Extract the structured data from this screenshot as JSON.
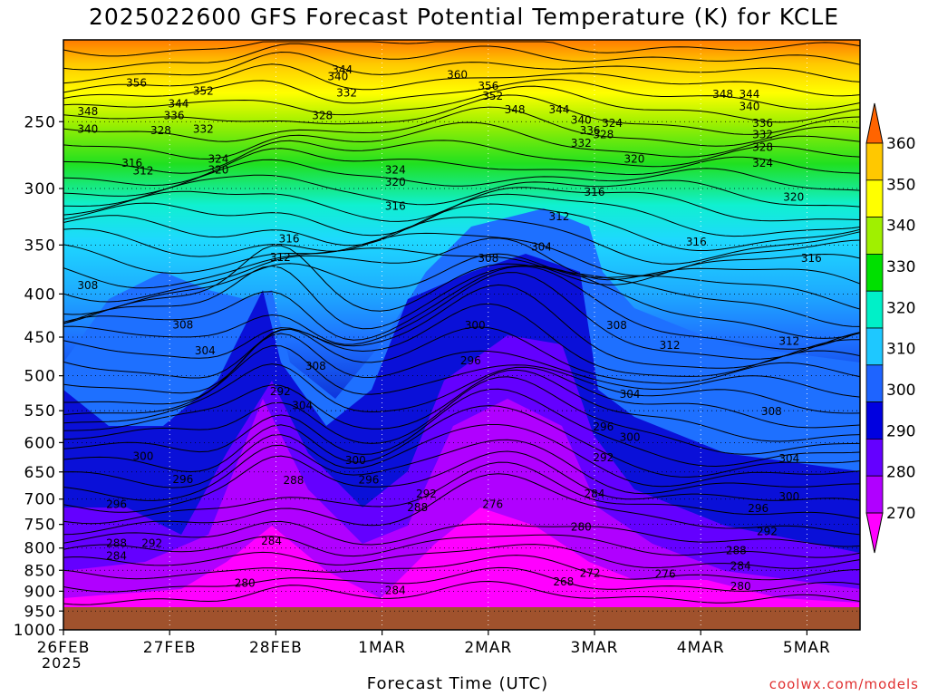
{
  "title": "2025022600 GFS Forecast Potential Temperature (K) for KCLE",
  "xlabel": "Forecast Time (UTC)",
  "credit": "coolwx.com/models",
  "year_label": "2025",
  "chart_data": {
    "type": "contour-time-height",
    "variable": "Potential Temperature (K)",
    "x_ticks": [
      "26FEB",
      "27FEB",
      "28FEB",
      "1MAR",
      "2MAR",
      "3MAR",
      "4MAR",
      "5MAR"
    ],
    "y_ticks": [
      250,
      300,
      350,
      400,
      450,
      500,
      550,
      600,
      650,
      700,
      750,
      800,
      850,
      900,
      950,
      1000
    ],
    "y_scale": "log",
    "y_range": [
      1000,
      200
    ],
    "x_range_hours": [
      0,
      180
    ],
    "colorbar_levels": [
      270,
      280,
      290,
      300,
      310,
      320,
      330,
      340,
      350,
      360
    ],
    "colorbar_colors": [
      "#ff00ff",
      "#b000ff",
      "#6400ff",
      "#0000e0",
      "#1e64ff",
      "#1ec8ff",
      "#00f0c8",
      "#00e000",
      "#a0f000",
      "#ffff00",
      "#ffc800",
      "#ff6400"
    ],
    "contour_labels": [
      {
        "t": 16.5,
        "p": 225,
        "v": 356
      },
      {
        "t": 31.6,
        "p": 230,
        "v": 352
      },
      {
        "t": 5.5,
        "p": 243,
        "v": 348
      },
      {
        "t": 5.5,
        "p": 255,
        "v": 340
      },
      {
        "t": 26,
        "p": 238,
        "v": 344
      },
      {
        "t": 25,
        "p": 246,
        "v": 336
      },
      {
        "t": 31.6,
        "p": 255,
        "v": 332
      },
      {
        "t": 22,
        "p": 256,
        "v": 328
      },
      {
        "t": 15.5,
        "p": 280,
        "v": 316
      },
      {
        "t": 18,
        "p": 286,
        "v": 312
      },
      {
        "t": 35,
        "p": 277,
        "v": 324
      },
      {
        "t": 35,
        "p": 285,
        "v": 320
      },
      {
        "t": 63,
        "p": 217,
        "v": 344
      },
      {
        "t": 62,
        "p": 221,
        "v": 340
      },
      {
        "t": 64,
        "p": 231,
        "v": 332
      },
      {
        "t": 58.5,
        "p": 246,
        "v": 328
      },
      {
        "t": 75,
        "p": 285,
        "v": 324
      },
      {
        "t": 75,
        "p": 295,
        "v": 320
      },
      {
        "t": 75,
        "p": 315,
        "v": 316
      },
      {
        "t": 89,
        "p": 220,
        "v": 360
      },
      {
        "t": 96,
        "p": 227,
        "v": 356
      },
      {
        "t": 97,
        "p": 233,
        "v": 352
      },
      {
        "t": 102,
        "p": 242,
        "v": 348
      },
      {
        "t": 112,
        "p": 242,
        "v": 344
      },
      {
        "t": 117,
        "p": 249,
        "v": 340
      },
      {
        "t": 119,
        "p": 256,
        "v": 336
      },
      {
        "t": 117,
        "p": 265,
        "v": 332
      },
      {
        "t": 124,
        "p": 251,
        "v": 324
      },
      {
        "t": 122,
        "p": 259,
        "v": 328
      },
      {
        "t": 129,
        "p": 277,
        "v": 320
      },
      {
        "t": 120,
        "p": 303,
        "v": 316
      },
      {
        "t": 149,
        "p": 232,
        "v": 348
      },
      {
        "t": 155,
        "p": 232,
        "v": 344
      },
      {
        "t": 155,
        "p": 240,
        "v": 340
      },
      {
        "t": 158,
        "p": 251,
        "v": 336
      },
      {
        "t": 158,
        "p": 259,
        "v": 332
      },
      {
        "t": 158,
        "p": 268,
        "v": 328
      },
      {
        "t": 158,
        "p": 280,
        "v": 324
      },
      {
        "t": 165,
        "p": 307,
        "v": 320
      },
      {
        "t": 143,
        "p": 347,
        "v": 316
      },
      {
        "t": 169,
        "p": 363,
        "v": 316
      },
      {
        "t": 51,
        "p": 344,
        "v": 316
      },
      {
        "t": 49,
        "p": 362,
        "v": 312
      },
      {
        "t": 112,
        "p": 324,
        "v": 312
      },
      {
        "t": 96,
        "p": 363,
        "v": 308
      },
      {
        "t": 108,
        "p": 352,
        "v": 304
      },
      {
        "t": 5.5,
        "p": 391,
        "v": 308
      },
      {
        "t": 27,
        "p": 435,
        "v": 308
      },
      {
        "t": 32,
        "p": 467,
        "v": 304
      },
      {
        "t": 57,
        "p": 487,
        "v": 308
      },
      {
        "t": 54,
        "p": 542,
        "v": 304
      },
      {
        "t": 49,
        "p": 522,
        "v": 292
      },
      {
        "t": 93,
        "p": 436,
        "v": 300
      },
      {
        "t": 92,
        "p": 480,
        "v": 296
      },
      {
        "t": 125,
        "p": 436,
        "v": 308
      },
      {
        "t": 137,
        "p": 460,
        "v": 312
      },
      {
        "t": 128,
        "p": 526,
        "v": 304
      },
      {
        "t": 122,
        "p": 575,
        "v": 296
      },
      {
        "t": 128,
        "p": 591,
        "v": 300
      },
      {
        "t": 122,
        "p": 625,
        "v": 292
      },
      {
        "t": 160,
        "p": 551,
        "v": 308
      },
      {
        "t": 164,
        "p": 455,
        "v": 312
      },
      {
        "t": 164,
        "p": 627,
        "v": 304
      },
      {
        "t": 164,
        "p": 695,
        "v": 300
      },
      {
        "t": 157,
        "p": 718,
        "v": 296
      },
      {
        "t": 159,
        "p": 765,
        "v": 292
      },
      {
        "t": 152,
        "p": 805,
        "v": 288
      },
      {
        "t": 153,
        "p": 840,
        "v": 284
      },
      {
        "t": 153,
        "p": 888,
        "v": 280
      },
      {
        "t": 18,
        "p": 623,
        "v": 300
      },
      {
        "t": 27,
        "p": 663,
        "v": 296
      },
      {
        "t": 12,
        "p": 710,
        "v": 296
      },
      {
        "t": 12,
        "p": 790,
        "v": 288
      },
      {
        "t": 20,
        "p": 790,
        "v": 292
      },
      {
        "t": 12,
        "p": 818,
        "v": 284
      },
      {
        "t": 41,
        "p": 880,
        "v": 280
      },
      {
        "t": 47,
        "p": 785,
        "v": 284
      },
      {
        "t": 52,
        "p": 665,
        "v": 288
      },
      {
        "t": 66,
        "p": 630,
        "v": 300
      },
      {
        "t": 69,
        "p": 664,
        "v": 296
      },
      {
        "t": 82,
        "p": 690,
        "v": 292
      },
      {
        "t": 80,
        "p": 716,
        "v": 288
      },
      {
        "t": 75,
        "p": 898,
        "v": 284
      },
      {
        "t": 97,
        "p": 710,
        "v": 276
      },
      {
        "t": 117,
        "p": 755,
        "v": 280
      },
      {
        "t": 119,
        "p": 857,
        "v": 272
      },
      {
        "t": 113,
        "p": 877,
        "v": 268
      },
      {
        "t": 120,
        "p": 690,
        "v": 284
      },
      {
        "t": 136,
        "p": 859,
        "v": 276
      }
    ]
  }
}
